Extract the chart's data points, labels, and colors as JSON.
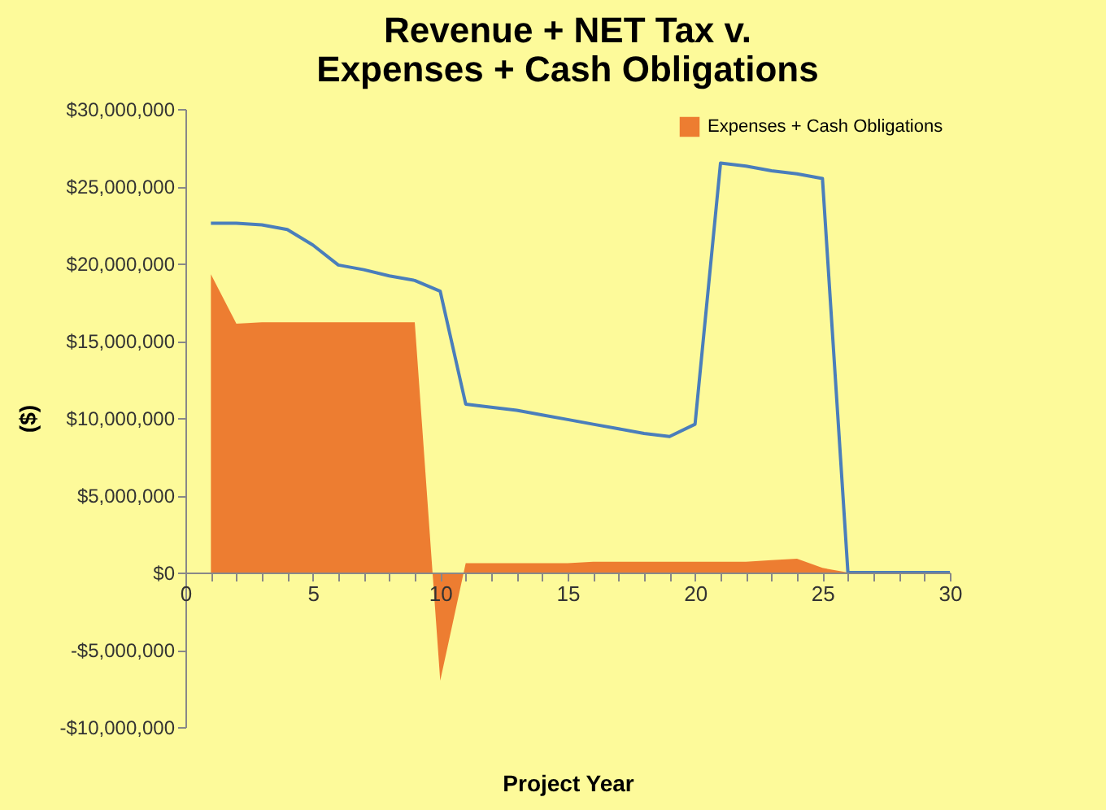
{
  "chart_data": {
    "type": "area",
    "title": [
      "Revenue + NET Tax  v.",
      "Expenses + Cash Obligations"
    ],
    "xlabel": "Project Year",
    "ylabel": "($)",
    "x": [
      1,
      2,
      3,
      4,
      5,
      6,
      7,
      8,
      9,
      10,
      11,
      12,
      13,
      14,
      15,
      16,
      17,
      18,
      19,
      20,
      21,
      22,
      23,
      24,
      25,
      26,
      27,
      28,
      29,
      30
    ],
    "series": [
      {
        "type": "line",
        "color": "#4a7ebb",
        "values": [
          22600000,
          22600000,
          22500000,
          22200000,
          21200000,
          19900000,
          19600000,
          19200000,
          18900000,
          18200000,
          10900000,
          10700000,
          10500000,
          10200000,
          9900000,
          9600000,
          9300000,
          9000000,
          8800000,
          9600000,
          26500000,
          26300000,
          26000000,
          25800000,
          25500000,
          0,
          0,
          0,
          0,
          0
        ]
      },
      {
        "type": "area",
        "name": "Expenses + Cash Obligations",
        "color": "#ed7d31",
        "values": [
          19300000,
          16100000,
          16200000,
          16200000,
          16200000,
          16200000,
          16200000,
          16200000,
          16200000,
          -7000000,
          600000,
          600000,
          600000,
          600000,
          600000,
          700000,
          700000,
          700000,
          700000,
          700000,
          700000,
          700000,
          800000,
          900000,
          300000,
          0,
          null,
          null,
          null,
          null
        ]
      }
    ],
    "xlim": [
      0,
      30
    ],
    "xticks": [
      0,
      {
        "value": 1,
        "label": null
      },
      {
        "value": 2,
        "label": null
      },
      {
        "value": 3,
        "label": null
      },
      {
        "value": 4,
        "label": null
      },
      5,
      {
        "value": 6,
        "label": null
      },
      {
        "value": 7,
        "label": null
      },
      {
        "value": 8,
        "label": null
      },
      {
        "value": 9,
        "label": null
      },
      10,
      {
        "value": 11,
        "label": null
      },
      {
        "value": 12,
        "label": null
      },
      {
        "value": 13,
        "label": null
      },
      {
        "value": 14,
        "label": null
      },
      15,
      {
        "value": 16,
        "label": null
      },
      {
        "value": 17,
        "label": null
      },
      {
        "value": 18,
        "label": null
      },
      {
        "value": 19,
        "label": null
      },
      20,
      {
        "value": 21,
        "label": null
      },
      {
        "value": 22,
        "label": null
      },
      {
        "value": 23,
        "label": null
      },
      {
        "value": 24,
        "label": null
      },
      25,
      {
        "value": 26,
        "label": null
      },
      {
        "value": 27,
        "label": null
      },
      {
        "value": 28,
        "label": null
      },
      {
        "value": 29,
        "label": null
      },
      30
    ],
    "ylim": [
      -10000000,
      30000000
    ],
    "yticks": [
      {
        "value": -10000000,
        "label": "-$10,000,000"
      },
      {
        "value": -5000000,
        "label": "-$5,000,000"
      },
      {
        "value": 0,
        "label": "$0"
      },
      {
        "value": 5000000,
        "label": "$5,000,000"
      },
      {
        "value": 10000000,
        "label": "$10,000,000"
      },
      {
        "value": 15000000,
        "label": "$15,000,000"
      },
      {
        "value": 20000000,
        "label": "$20,000,000"
      },
      {
        "value": 25000000,
        "label": "$25,000,000"
      },
      {
        "value": 30000000,
        "label": "$30,000,000"
      }
    ],
    "grid": false,
    "legend": "top right"
  }
}
